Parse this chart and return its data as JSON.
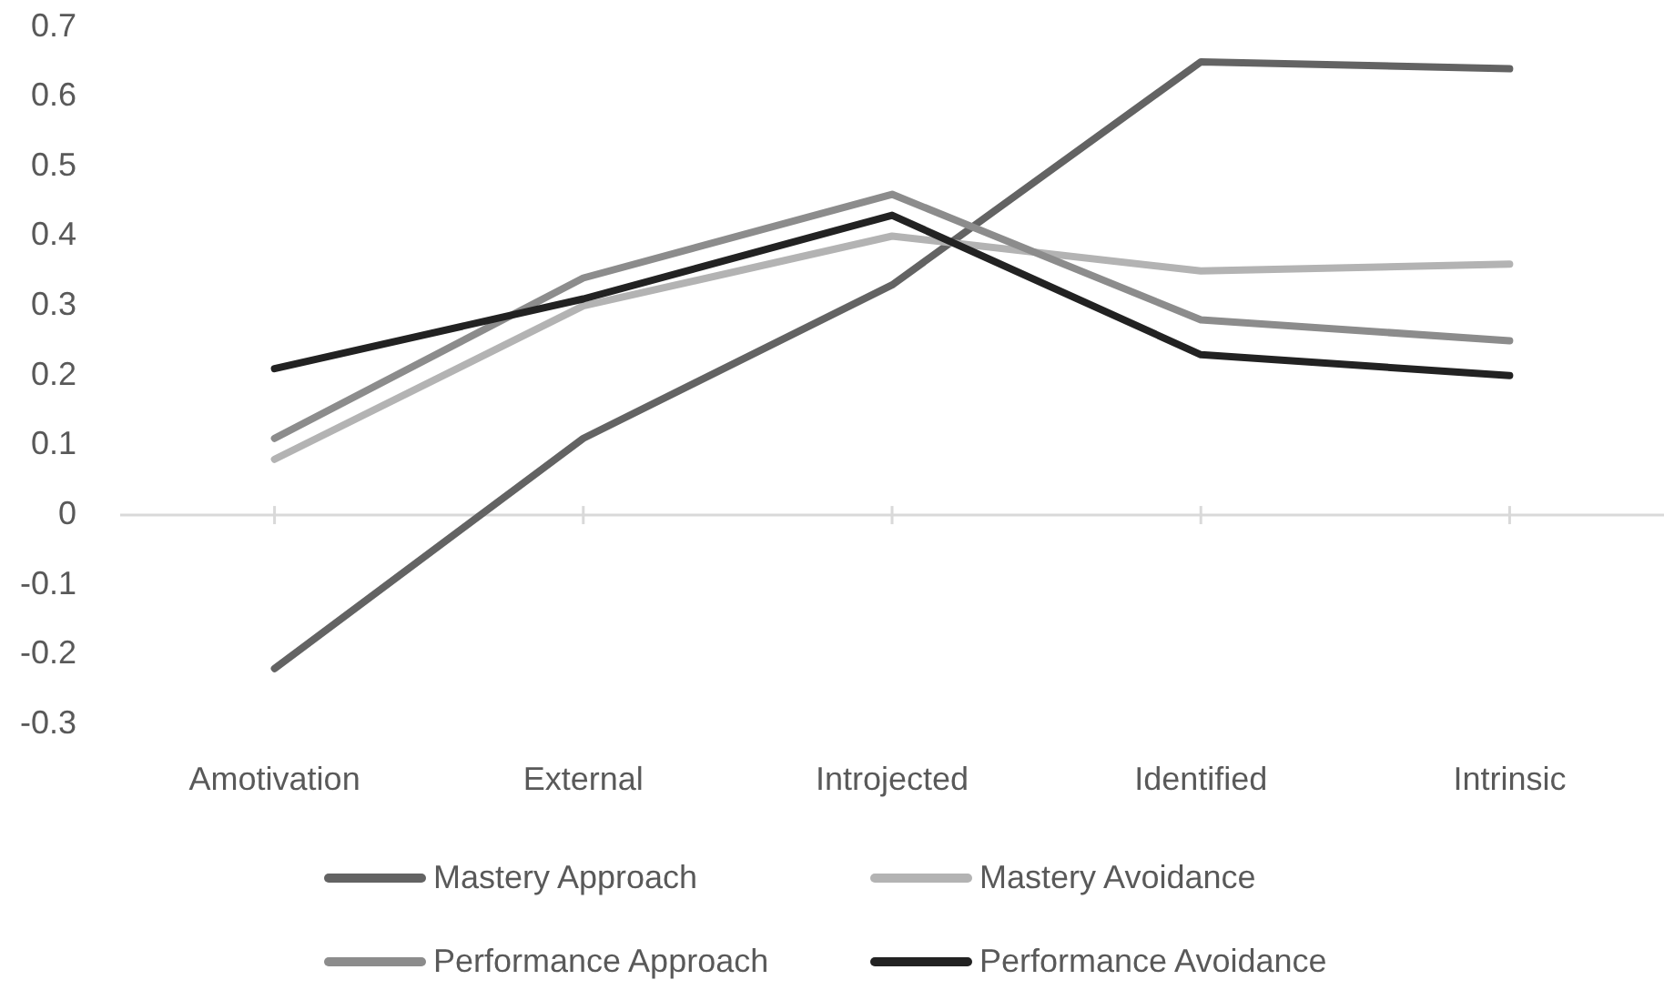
{
  "chart_data": {
    "type": "line",
    "categories": [
      "Amotivation",
      "External",
      "Introjected",
      "Identified",
      "Intrinsic"
    ],
    "series": [
      {
        "name": "Mastery Approach",
        "color": "#636363",
        "values": [
          -0.22,
          0.11,
          0.33,
          0.65,
          0.64
        ]
      },
      {
        "name": "Mastery Avoidance",
        "color": "#b3b3b3",
        "values": [
          0.08,
          0.3,
          0.4,
          0.35,
          0.36
        ]
      },
      {
        "name": "Performance Approach",
        "color": "#8c8c8c",
        "values": [
          0.11,
          0.34,
          0.46,
          0.28,
          0.25
        ]
      },
      {
        "name": "Performance Avoidance",
        "color": "#222222",
        "values": [
          0.21,
          0.31,
          0.43,
          0.23,
          0.2
        ]
      }
    ],
    "ylim": [
      -0.3,
      0.7
    ],
    "yticks": [
      -0.3,
      -0.2,
      -0.1,
      0,
      0.1,
      0.2,
      0.3,
      0.4,
      0.5,
      0.6,
      0.7
    ],
    "legend": "bottom",
    "marker": "none"
  }
}
